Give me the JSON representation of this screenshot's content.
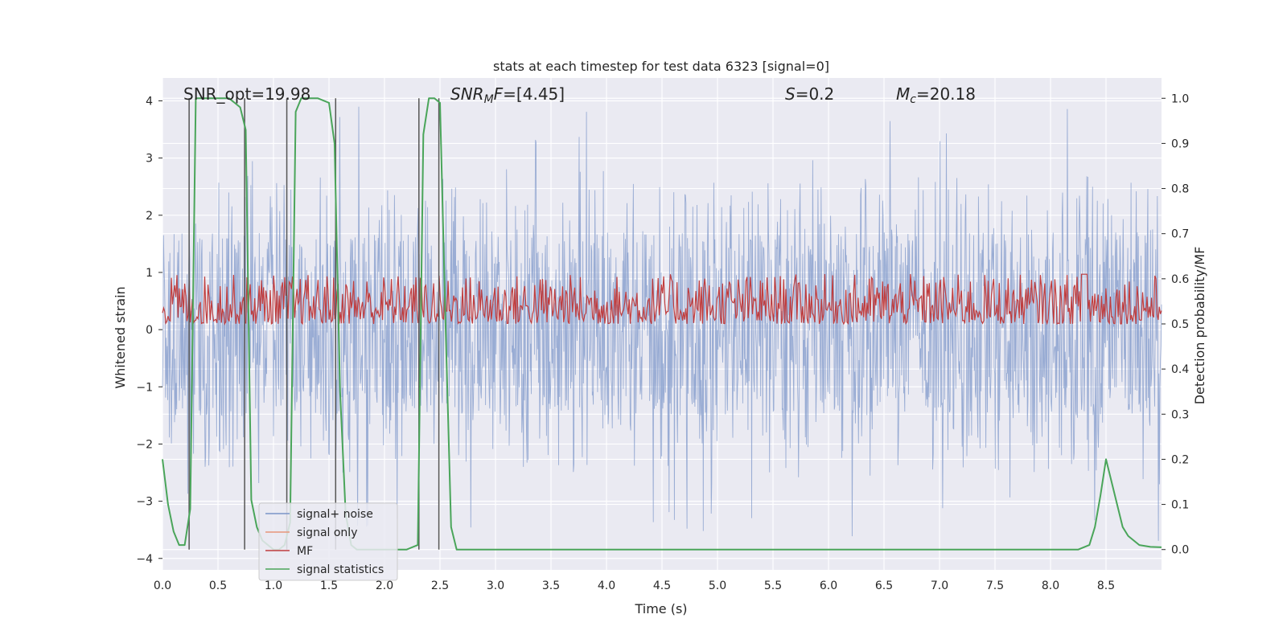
{
  "chart_data": {
    "type": "line",
    "title": "stats at each timestep for test data 6323 [signal=0]",
    "xlabel": "Time (s)",
    "ylabel_left": "Whitened strain",
    "ylabel_right": "Detection probability/MF",
    "xlim": [
      0.0,
      9.0
    ],
    "ylim_left": [
      -4.2,
      4.4
    ],
    "ylim_right": [
      -0.045,
      1.045
    ],
    "grid": true,
    "x_ticks": [
      0.0,
      0.5,
      1.0,
      1.5,
      2.0,
      2.5,
      3.0,
      3.5,
      4.0,
      4.5,
      5.0,
      5.5,
      6.0,
      6.5,
      7.0,
      7.5,
      8.0,
      8.5
    ],
    "x_tick_labels": [
      "0.0",
      "0.5",
      "1.0",
      "1.5",
      "2.0",
      "2.5",
      "3.0",
      "3.5",
      "4.0",
      "4.5",
      "5.0",
      "5.5",
      "6.0",
      "6.5",
      "7.0",
      "7.5",
      "8.0",
      "8.5"
    ],
    "y_left_ticks": [
      4,
      3,
      2,
      1,
      0,
      -1,
      -2,
      -3,
      -4
    ],
    "y_left_tick_labels": [
      "4",
      "3",
      "2",
      "1",
      "0",
      "−1",
      "−2",
      "−3",
      "−4"
    ],
    "y_right_ticks": [
      1.0,
      0.9,
      0.8,
      0.7,
      0.6,
      0.5,
      0.4,
      0.3,
      0.2,
      0.1,
      0.0
    ],
    "y_right_tick_labels": [
      "1.0",
      "0.9",
      "0.8",
      "0.7",
      "0.6",
      "0.5",
      "0.4",
      "0.3",
      "0.2",
      "0.1",
      "0.0"
    ],
    "legend": {
      "position": "lower-left",
      "entries": [
        {
          "label": "signal+ noise",
          "color": "#7a94c8"
        },
        {
          "label": "signal only",
          "color": "#e8967a"
        },
        {
          "label": "MF",
          "color": "#c03d3e"
        },
        {
          "label": "signal statistics",
          "color": "#4aa55a"
        }
      ]
    },
    "annotations": [
      {
        "label": "SNR_opt=19.98",
        "x": 0.2
      },
      {
        "label": "SNRₘF=[4.45]",
        "x": 2.6
      },
      {
        "label": "S=0.2",
        "x": 5.6
      },
      {
        "label": "M_c=20.18",
        "x": 6.6
      }
    ],
    "series": [
      {
        "name": "signal+ noise",
        "axis": "left",
        "description": "dense noisy whitened strain, bulk within about -1.5 to 1.7 with spikes up to about 4 and down to about -3.7",
        "envelope_y": [
          -1.5,
          1.7
        ],
        "spike_y_max": 4.0,
        "spike_y_min": -3.75,
        "color": "#7a94c8"
      },
      {
        "name": "MF",
        "axis": "right",
        "description": "matched filter output fluctuating between about 0.5 and 0.63",
        "range_y": [
          0.5,
          0.63
        ],
        "peak": {
          "x": 8.3,
          "y": 0.61
        },
        "color": "#c03d3e"
      },
      {
        "name": "signal statistics",
        "axis": "right",
        "color": "#4aa55a",
        "x": [
          0.0,
          0.05,
          0.1,
          0.15,
          0.2,
          0.25,
          0.3,
          0.35,
          0.4,
          0.5,
          0.6,
          0.65,
          0.7,
          0.75,
          0.8,
          0.85,
          0.9,
          1.0,
          1.05,
          1.1,
          1.15,
          1.2,
          1.25,
          1.3,
          1.4,
          1.5,
          1.55,
          1.6,
          1.65,
          1.7,
          1.75,
          1.8,
          1.9,
          2.0,
          2.2,
          2.3,
          2.35,
          2.4,
          2.45,
          2.5,
          2.55,
          2.6,
          2.65,
          2.7,
          3.0,
          4.0,
          5.0,
          6.0,
          7.0,
          8.0,
          8.25,
          8.35,
          8.4,
          8.45,
          8.5,
          8.6,
          8.65,
          8.7,
          8.75,
          8.8,
          8.9,
          9.0
        ],
        "y": [
          0.2,
          0.1,
          0.04,
          0.01,
          0.01,
          0.09,
          1.0,
          1.0,
          1.0,
          1.0,
          1.0,
          0.99,
          0.98,
          0.93,
          0.11,
          0.05,
          0.02,
          0.0,
          0.0,
          0.01,
          0.06,
          0.97,
          1.0,
          1.0,
          1.0,
          0.99,
          0.9,
          0.35,
          0.08,
          0.01,
          0.0,
          0.0,
          0.0,
          0.0,
          0.0,
          0.01,
          0.92,
          1.0,
          1.0,
          0.99,
          0.5,
          0.05,
          0.0,
          0.0,
          0.0,
          0.0,
          0.0,
          0.0,
          0.0,
          0.0,
          0.0,
          0.01,
          0.05,
          0.12,
          0.2,
          0.1,
          0.05,
          0.03,
          0.02,
          0.01,
          0.006,
          0.005
        ]
      }
    ],
    "vertical_lines": [
      {
        "x": 0.24,
        "color": "#555555"
      },
      {
        "x": 0.74,
        "color": "#555555"
      },
      {
        "x": 1.12,
        "color": "#555555"
      },
      {
        "x": 1.56,
        "color": "#555555"
      },
      {
        "x": 2.31,
        "color": "#555555"
      },
      {
        "x": 2.49,
        "color": "#555555"
      }
    ]
  }
}
